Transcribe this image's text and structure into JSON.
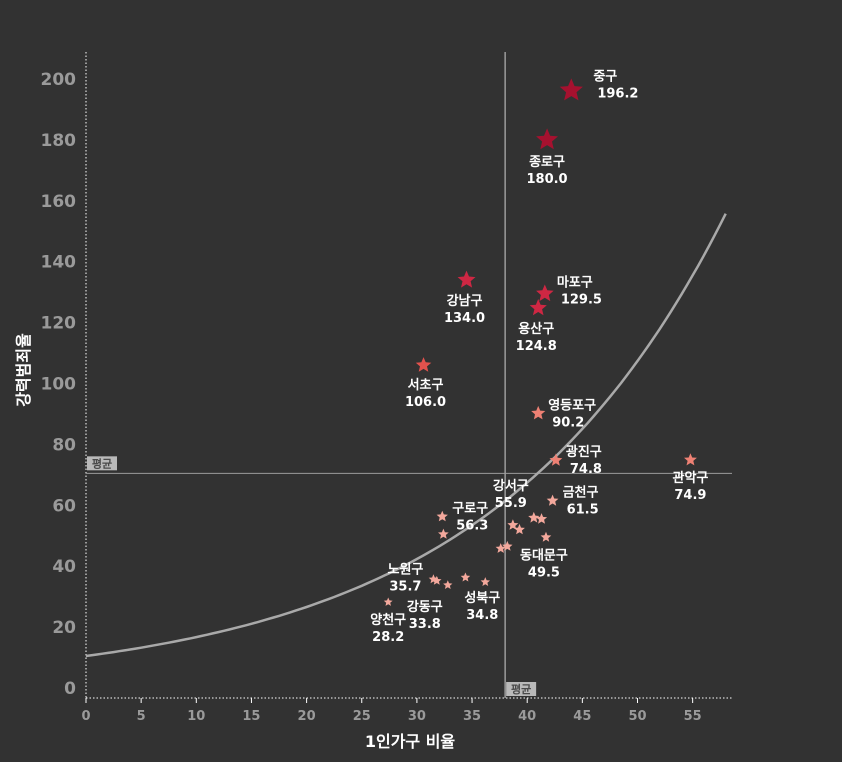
{
  "chart_data": {
    "type": "scatter",
    "xlabel": "1인가구 비율",
    "ylabel": "강력범죄율",
    "xlim": [
      0,
      58
    ],
    "ylim": [
      0,
      205
    ],
    "xticks": [
      "0",
      "5",
      "10",
      "15",
      "20",
      "25",
      "30",
      "35",
      "40",
      "45",
      "50",
      "55"
    ],
    "yticks": [
      "0",
      "20",
      "40",
      "60",
      "80",
      "100",
      "120",
      "140",
      "160",
      "180",
      "200"
    ],
    "mean_x": 38,
    "mean_y": 70.5,
    "mean_label": "평균",
    "curve": {
      "type": "exponential",
      "y_at_0": 10.5,
      "growth_rate": 0.0465
    },
    "points": [
      {
        "name": "중구",
        "x": 44.0,
        "y": 196.2,
        "value_label": "196.2",
        "labeled": true
      },
      {
        "name": "종로구",
        "x": 41.8,
        "y": 180.0,
        "value_label": "180.0",
        "labeled": true
      },
      {
        "name": "강남구",
        "x": 34.5,
        "y": 134.0,
        "value_label": "134.0",
        "labeled": true
      },
      {
        "name": "마포구",
        "x": 41.6,
        "y": 129.5,
        "value_label": "129.5",
        "labeled": true
      },
      {
        "name": "용산구",
        "x": 41.0,
        "y": 124.8,
        "value_label": "124.8",
        "labeled": true
      },
      {
        "name": "서초구",
        "x": 30.6,
        "y": 106.0,
        "value_label": "106.0",
        "labeled": true
      },
      {
        "name": "영등포구",
        "x": 41.0,
        "y": 90.2,
        "value_label": "90.2",
        "labeled": true
      },
      {
        "name": "관악구",
        "x": 54.8,
        "y": 74.9,
        "value_label": "74.9",
        "labeled": true
      },
      {
        "name": "광진구",
        "x": 42.6,
        "y": 74.8,
        "value_label": "74.8",
        "labeled": true
      },
      {
        "name": "금천구",
        "x": 42.3,
        "y": 61.5,
        "value_label": "61.5",
        "labeled": true
      },
      {
        "name": "구로구",
        "x": 32.3,
        "y": 56.3,
        "value_label": "56.3",
        "labeled": true
      },
      {
        "name": "강서구",
        "x": 40.6,
        "y": 55.9,
        "value_label": "55.9",
        "labeled": true
      },
      {
        "name": "동대문구",
        "x": 41.7,
        "y": 49.5,
        "value_label": "49.5",
        "labeled": true
      },
      {
        "name": "노원구",
        "x": 31.5,
        "y": 35.7,
        "value_label": "35.7",
        "labeled": true
      },
      {
        "name": "성북구",
        "x": 36.2,
        "y": 34.8,
        "value_label": "34.8",
        "labeled": true
      },
      {
        "name": "강동구",
        "x": 32.8,
        "y": 33.8,
        "value_label": "33.8",
        "labeled": true
      },
      {
        "name": "양천구",
        "x": 27.4,
        "y": 28.2,
        "value_label": "28.2",
        "labeled": true
      },
      {
        "name": "",
        "x": 41.3,
        "y": 55.5,
        "value_label": "",
        "labeled": false
      },
      {
        "name": "",
        "x": 38.7,
        "y": 53.5,
        "value_label": "",
        "labeled": false
      },
      {
        "name": "",
        "x": 39.3,
        "y": 52.0,
        "value_label": "",
        "labeled": false
      },
      {
        "name": "",
        "x": 32.4,
        "y": 50.5,
        "value_label": "",
        "labeled": false
      },
      {
        "name": "",
        "x": 38.2,
        "y": 46.5,
        "value_label": "",
        "labeled": false
      },
      {
        "name": "",
        "x": 37.6,
        "y": 45.8,
        "value_label": "",
        "labeled": false
      },
      {
        "name": "",
        "x": 31.8,
        "y": 35.2,
        "value_label": "",
        "labeled": false
      },
      {
        "name": "",
        "x": 34.4,
        "y": 36.3,
        "value_label": "",
        "labeled": false
      }
    ]
  },
  "colors": {
    "background": "#323232",
    "axis": "#ffffff",
    "tick": "#9a9a9a",
    "mean_line": "#9c9c9c",
    "curve": "#a9a9a9",
    "star_scale": [
      "#f3a89c",
      "#ee8174",
      "#e2524d",
      "#ce2743",
      "#a6112f"
    ]
  }
}
